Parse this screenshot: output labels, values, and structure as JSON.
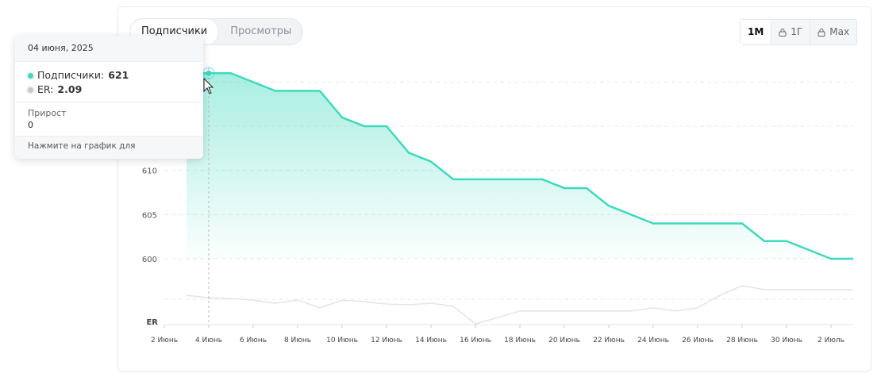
{
  "tabs": [
    "Подписчики",
    "Просмотры"
  ],
  "periods": [
    "1M",
    "1Г",
    "Max"
  ],
  "tooltip": {
    "date": "04 июня, 2025",
    "rows": [
      {
        "label": "Подписчики:",
        "value": "621"
      },
      {
        "label": "ER:",
        "value": "2.09"
      }
    ],
    "growth_label": "Прирост",
    "growth_value": "0",
    "hint": "Нажмите на график для подробностей"
  },
  "chart_data": {
    "type": "line",
    "categories": [
      "2 Июнь",
      null,
      "4 Июнь",
      null,
      "6 Июнь",
      null,
      "8 Июнь",
      null,
      "10 Июнь",
      null,
      "12 Июнь",
      null,
      "14 Июнь",
      null,
      "16 Июнь",
      null,
      "18 Июнь",
      null,
      "20 Июнь",
      null,
      "22 Июнь",
      null,
      "24 Июнь",
      null,
      "26 Июнь",
      null,
      "28 Июнь",
      null,
      "30 Июнь",
      null,
      "2 Июль",
      null
    ],
    "series": [
      {
        "color": "#3fd9bd",
        "values": [
          null,
          621,
          621,
          621,
          620,
          619,
          619,
          619,
          616,
          615,
          615,
          612,
          611,
          609,
          609,
          609,
          609,
          609,
          608,
          608,
          606,
          605,
          604,
          604,
          604,
          604,
          604,
          602,
          602,
          601,
          600,
          600
        ]
      },
      {
        "color": "#e4e4e4",
        "axis": "y2",
        "values": [
          null,
          2.15,
          2.09,
          2.07,
          2.03,
          1.95,
          2.03,
          1.83,
          2.03,
          1.99,
          1.93,
          1.91,
          1.95,
          1.87,
          1.42,
          1.58,
          1.75,
          1.75,
          1.75,
          1.75,
          1.75,
          1.75,
          1.83,
          1.75,
          1.83,
          2.15,
          2.4,
          2.3,
          2.3,
          2.3,
          2.3,
          2.3
        ]
      }
    ],
    "ylim": [
      600,
      623
    ],
    "yticks": [
      600,
      605,
      610,
      615,
      620
    ],
    "grid": true,
    "y2label": "ER",
    "y2lim": [
      1.4,
      2.5
    ]
  }
}
